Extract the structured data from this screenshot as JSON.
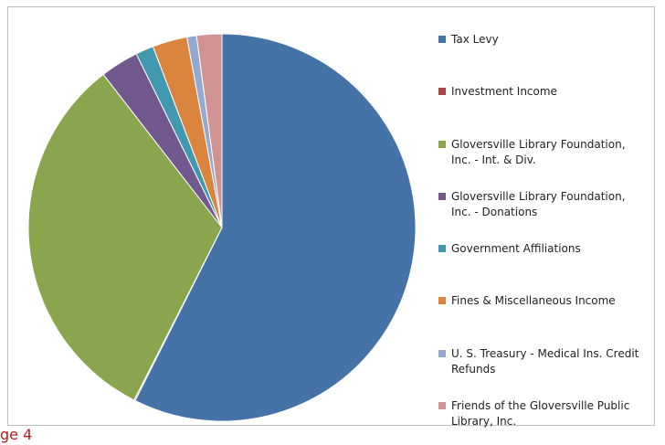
{
  "chart_data": {
    "type": "pie",
    "categories": [
      "Tax Levy",
      "Investment Income",
      "Gloversville Library Foundation, Inc. - Int. & Div.",
      "Gloversville Library Foundation, Inc. - Donations",
      "Government Affiliations",
      "Fines & Miscellaneous Income",
      "U. S. Treasury - Medical Ins. Credit Refunds",
      "Friends of the Gloversville Public Library, Inc."
    ],
    "values": [
      57.4,
      0.1,
      32,
      3.2,
      1.5,
      2.9,
      0.8,
      2.1
    ],
    "colors": [
      "#4572a7",
      "#aa4643",
      "#89a54e",
      "#71588f",
      "#4198af",
      "#db843d",
      "#93a9cf",
      "#d19392"
    ],
    "legend": "right"
  },
  "page_label": "ge 4"
}
